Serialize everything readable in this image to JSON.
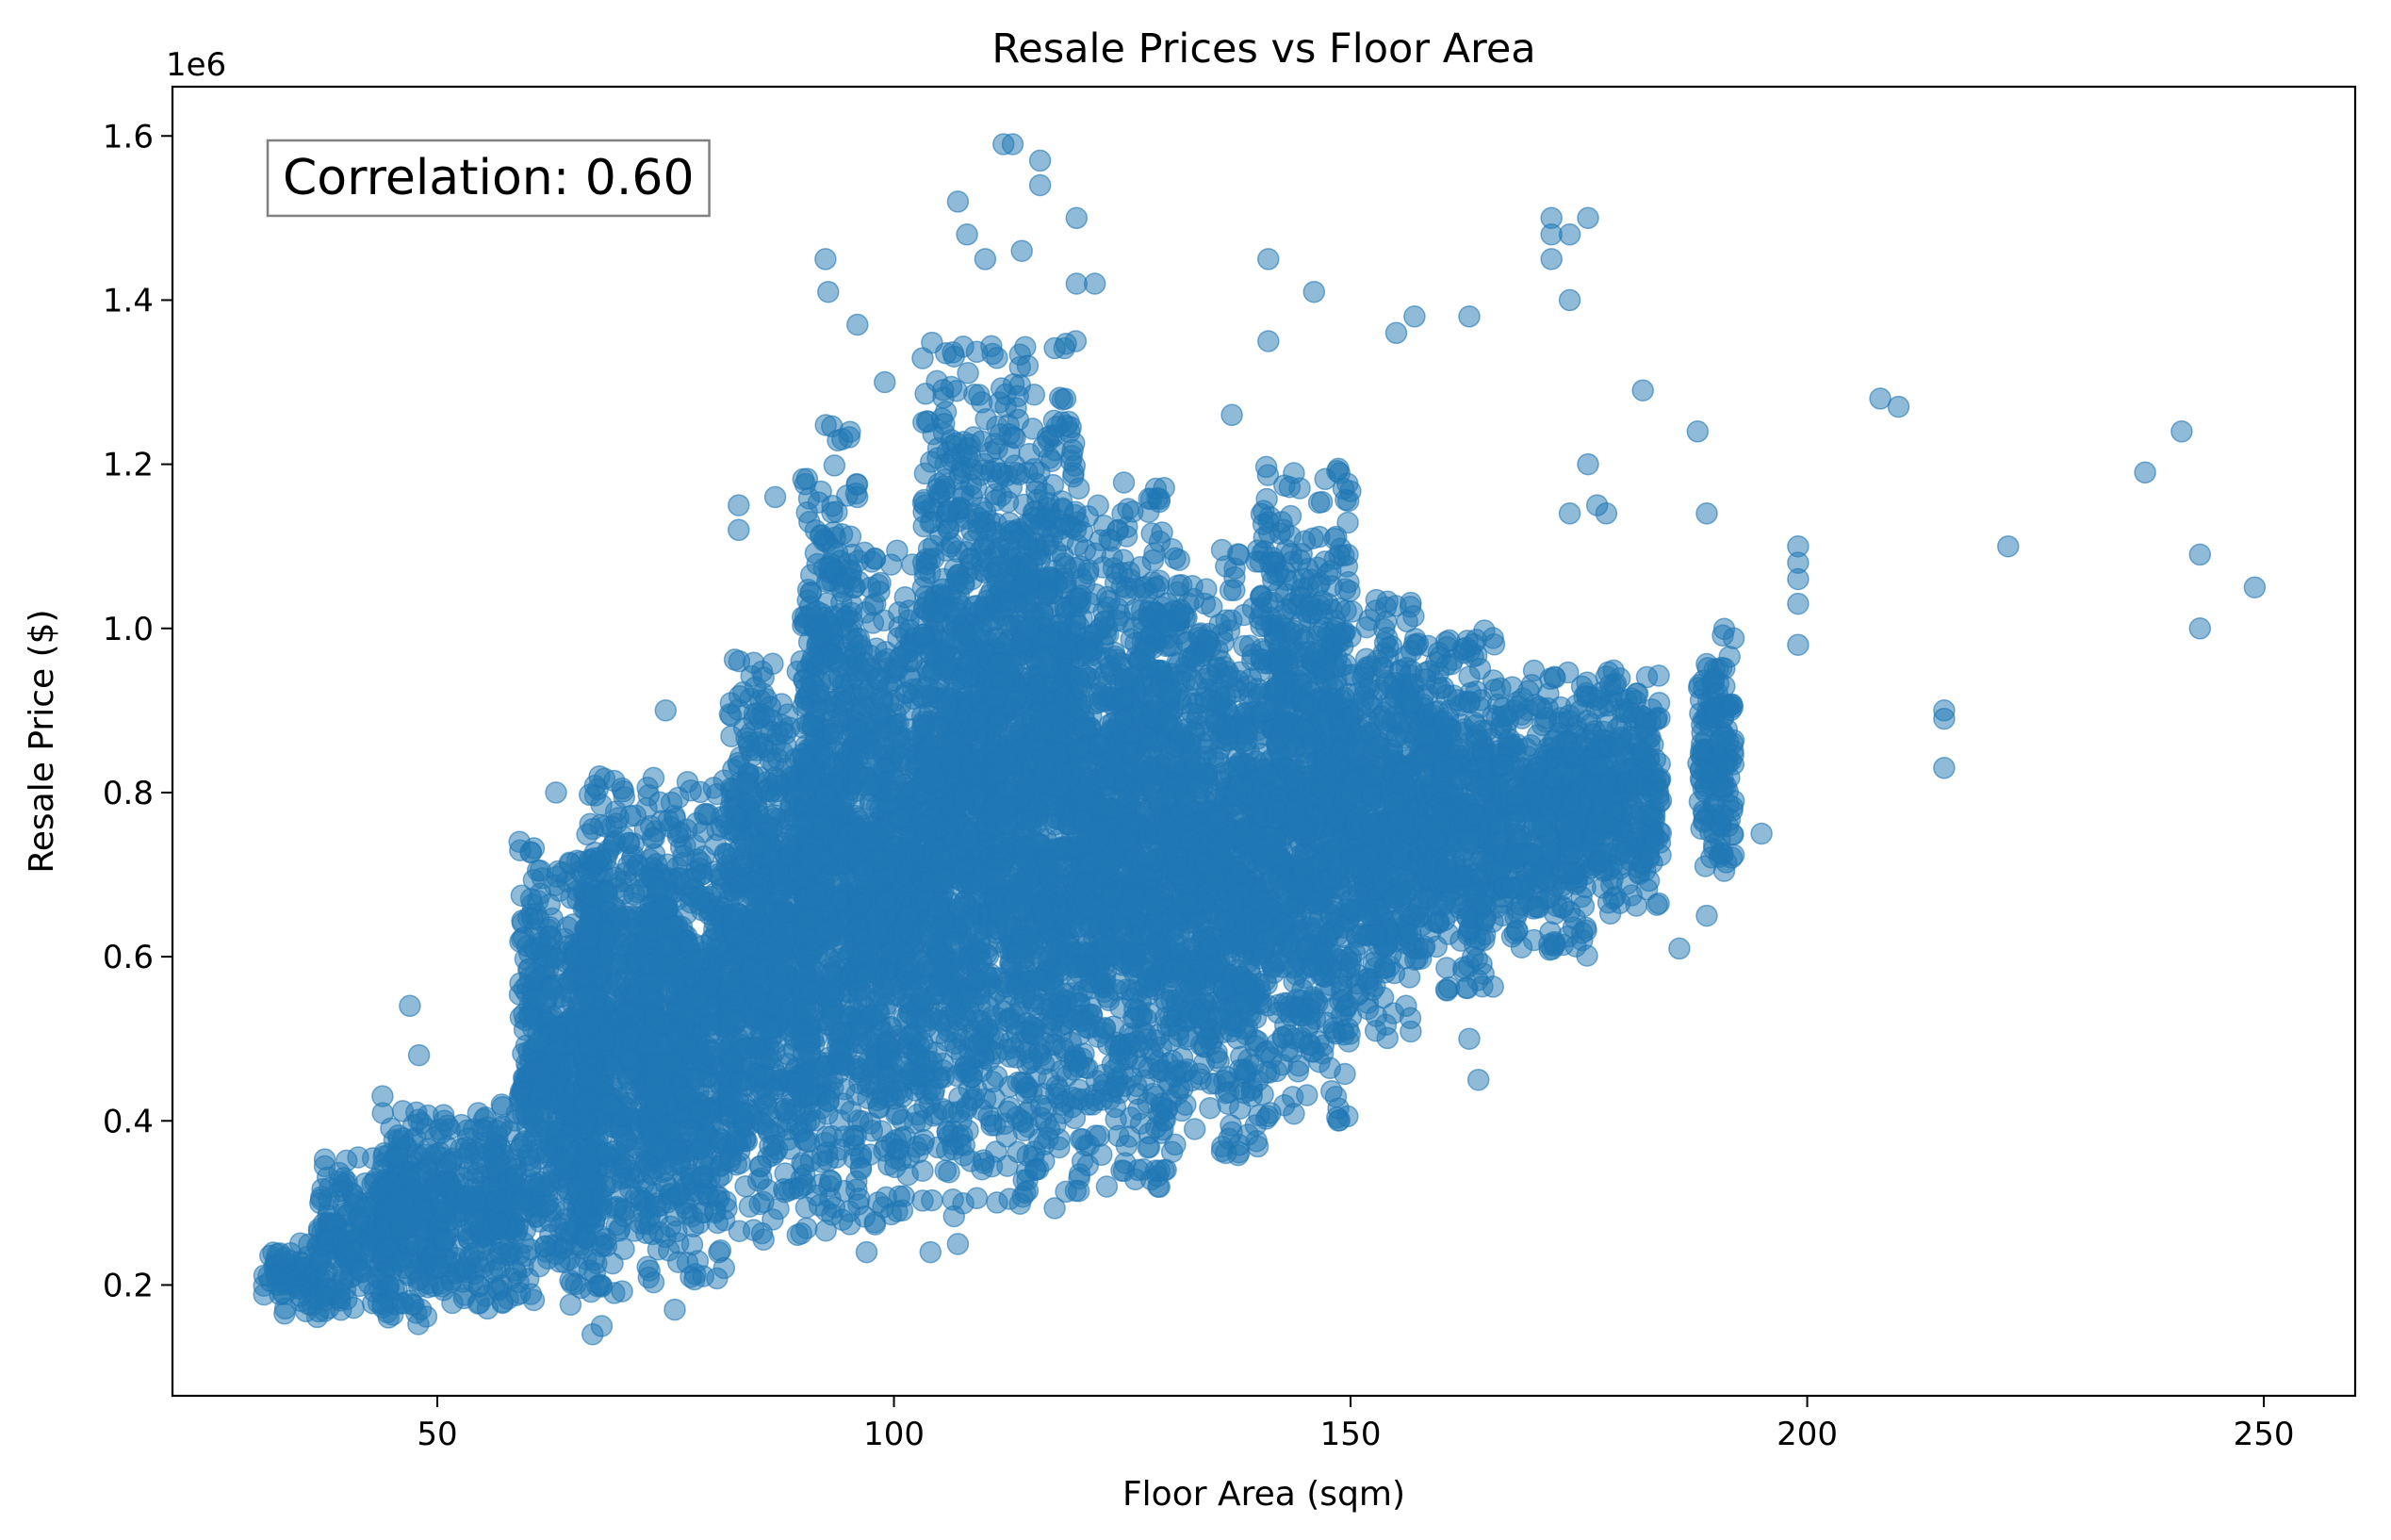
{
  "chart_data": {
    "type": "scatter",
    "title": "Resale Prices vs Floor Area",
    "xlabel": "Floor Area (sqm)",
    "ylabel": "Resale Price ($)",
    "y_offset_label": "1e6",
    "xlim": [
      21,
      260
    ],
    "ylim": [
      0.065,
      1.66
    ],
    "x_ticks": [
      50,
      100,
      150,
      200,
      250
    ],
    "x_tick_labels": [
      "50",
      "100",
      "150",
      "200",
      "250"
    ],
    "y_ticks": [
      0.2,
      0.4,
      0.6,
      0.8,
      1.0,
      1.2,
      1.4,
      1.6
    ],
    "y_tick_labels": [
      "0.2",
      "0.4",
      "0.6",
      "0.8",
      "1.0",
      "1.2",
      "1.4",
      "1.6"
    ],
    "y_units_note": "values in millions (x 1e6)",
    "grid": false,
    "legend": "none",
    "color": "#1f77b4",
    "marker_alpha": 0.5,
    "annotation": "Correlation: 0.60",
    "density_bands": [
      {
        "x": [
          31,
          37
        ],
        "y": [
          0.16,
          0.26
        ]
      },
      {
        "x": [
          37,
          46
        ],
        "y": [
          0.16,
          0.36
        ]
      },
      {
        "x": [
          44,
          50
        ],
        "y": [
          0.15,
          0.42
        ]
      },
      {
        "x": [
          50,
          59
        ],
        "y": [
          0.17,
          0.42
        ]
      },
      {
        "x": [
          59,
          68
        ],
        "y": [
          0.17,
          0.74
        ]
      },
      {
        "x": [
          66,
          74
        ],
        "y": [
          0.19,
          0.83
        ]
      },
      {
        "x": [
          73,
          82
        ],
        "y": [
          0.2,
          0.82
        ]
      },
      {
        "x": [
          82,
          91
        ],
        "y": [
          0.25,
          0.97
        ]
      },
      {
        "x": [
          90,
          96
        ],
        "y": [
          0.26,
          1.25
        ]
      },
      {
        "x": [
          96,
          103
        ],
        "y": [
          0.27,
          1.1
        ]
      },
      {
        "x": [
          103,
          111
        ],
        "y": [
          0.28,
          1.35
        ]
      },
      {
        "x": [
          111,
          120
        ],
        "y": [
          0.29,
          1.35
        ]
      },
      {
        "x": [
          120,
          130
        ],
        "y": [
          0.31,
          1.18
        ]
      },
      {
        "x": [
          130,
          140
        ],
        "y": [
          0.35,
          1.1
        ]
      },
      {
        "x": [
          140,
          150
        ],
        "y": [
          0.4,
          1.2
        ]
      },
      {
        "x": [
          150,
          158
        ],
        "y": [
          0.5,
          1.05
        ]
      },
      {
        "x": [
          158,
          166
        ],
        "y": [
          0.55,
          1.0
        ]
      },
      {
        "x": [
          166,
          176
        ],
        "y": [
          0.6,
          0.95
        ]
      },
      {
        "x": [
          176,
          184
        ],
        "y": [
          0.65,
          0.95
        ]
      },
      {
        "x": [
          188,
          192
        ],
        "y": [
          0.7,
          1.0
        ]
      }
    ],
    "outliers": [
      {
        "x": 113,
        "y": 1.59
      },
      {
        "x": 112,
        "y": 1.59
      },
      {
        "x": 116,
        "y": 1.57
      },
      {
        "x": 116,
        "y": 1.54
      },
      {
        "x": 107,
        "y": 1.52
      },
      {
        "x": 120,
        "y": 1.5
      },
      {
        "x": 108,
        "y": 1.48
      },
      {
        "x": 92.5,
        "y": 1.45
      },
      {
        "x": 110,
        "y": 1.45
      },
      {
        "x": 114,
        "y": 1.46
      },
      {
        "x": 92.8,
        "y": 1.41
      },
      {
        "x": 96,
        "y": 1.37
      },
      {
        "x": 120,
        "y": 1.42
      },
      {
        "x": 122,
        "y": 1.42
      },
      {
        "x": 141,
        "y": 1.45
      },
      {
        "x": 146,
        "y": 1.41
      },
      {
        "x": 172,
        "y": 1.5
      },
      {
        "x": 172,
        "y": 1.48
      },
      {
        "x": 174,
        "y": 1.48
      },
      {
        "x": 176,
        "y": 1.5
      },
      {
        "x": 172,
        "y": 1.45
      },
      {
        "x": 174,
        "y": 1.4
      },
      {
        "x": 157,
        "y": 1.38
      },
      {
        "x": 163,
        "y": 1.38
      },
      {
        "x": 155,
        "y": 1.36
      },
      {
        "x": 141,
        "y": 1.35
      },
      {
        "x": 99,
        "y": 1.3
      },
      {
        "x": 182,
        "y": 1.29
      },
      {
        "x": 208,
        "y": 1.28
      },
      {
        "x": 210,
        "y": 1.27
      },
      {
        "x": 137,
        "y": 1.26
      },
      {
        "x": 188,
        "y": 1.24
      },
      {
        "x": 241,
        "y": 1.24
      },
      {
        "x": 237,
        "y": 1.19
      },
      {
        "x": 176,
        "y": 1.2
      },
      {
        "x": 177,
        "y": 1.15
      },
      {
        "x": 174,
        "y": 1.14
      },
      {
        "x": 178,
        "y": 1.14
      },
      {
        "x": 189,
        "y": 1.14
      },
      {
        "x": 222,
        "y": 1.1
      },
      {
        "x": 199,
        "y": 1.1
      },
      {
        "x": 199,
        "y": 1.08
      },
      {
        "x": 243,
        "y": 1.09
      },
      {
        "x": 249,
        "y": 1.05
      },
      {
        "x": 199,
        "y": 1.06
      },
      {
        "x": 199,
        "y": 1.03
      },
      {
        "x": 243,
        "y": 1.0
      },
      {
        "x": 199,
        "y": 0.98
      },
      {
        "x": 215,
        "y": 0.9
      },
      {
        "x": 215,
        "y": 0.89
      },
      {
        "x": 215,
        "y": 0.83
      },
      {
        "x": 75,
        "y": 0.9
      },
      {
        "x": 83,
        "y": 1.15
      },
      {
        "x": 83,
        "y": 1.12
      },
      {
        "x": 87,
        "y": 1.16
      },
      {
        "x": 76,
        "y": 0.17
      },
      {
        "x": 67,
        "y": 0.14
      },
      {
        "x": 68,
        "y": 0.15
      },
      {
        "x": 164,
        "y": 0.45
      },
      {
        "x": 163,
        "y": 0.5
      },
      {
        "x": 186,
        "y": 0.61
      },
      {
        "x": 189,
        "y": 0.65
      },
      {
        "x": 195,
        "y": 0.75
      },
      {
        "x": 181,
        "y": 0.81
      },
      {
        "x": 104,
        "y": 0.24
      },
      {
        "x": 107,
        "y": 0.25
      },
      {
        "x": 97,
        "y": 0.24
      },
      {
        "x": 63,
        "y": 0.8
      },
      {
        "x": 44,
        "y": 0.43
      },
      {
        "x": 47,
        "y": 0.54
      },
      {
        "x": 48,
        "y": 0.48
      },
      {
        "x": 59,
        "y": 0.74
      }
    ]
  }
}
